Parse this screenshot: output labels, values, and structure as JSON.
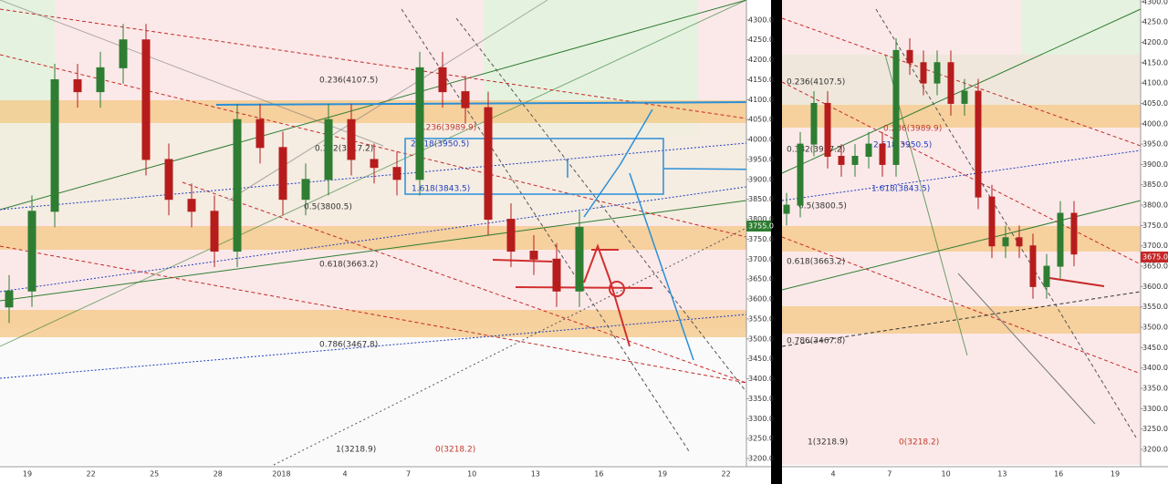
{
  "chart_data": [
    {
      "type": "candlestick",
      "ylim": [
        3184,
        4350
      ],
      "yticks": [
        {
          "value": 4300,
          "label": "4300.0"
        },
        {
          "value": 4250,
          "label": "4250.0"
        },
        {
          "value": 4200,
          "label": "4200.0"
        },
        {
          "value": 4150,
          "label": "4150.0"
        },
        {
          "value": 4100,
          "label": "4100.0"
        },
        {
          "value": 4050,
          "label": "4050.0"
        },
        {
          "value": 4000,
          "label": "4000.0"
        },
        {
          "value": 3950,
          "label": "3950.0"
        },
        {
          "value": 3900,
          "label": "3900.0"
        },
        {
          "value": 3850,
          "label": "3850.0"
        },
        {
          "value": 3800,
          "label": "3800.0"
        },
        {
          "value": 3750,
          "label": "3750.0"
        },
        {
          "value": 3700,
          "label": "3700.0"
        },
        {
          "value": 3650,
          "label": "3650.0"
        },
        {
          "value": 3600,
          "label": "3600.0"
        },
        {
          "value": 3550,
          "label": "3550.0"
        },
        {
          "value": 3500,
          "label": "3500.0"
        },
        {
          "value": 3450,
          "label": "3450.0"
        },
        {
          "value": 3400,
          "label": "3400.0"
        },
        {
          "value": 3350,
          "label": "3350.0"
        },
        {
          "value": 3300,
          "label": "3300.0"
        },
        {
          "value": 3250,
          "label": "3250.0"
        },
        {
          "value": 3200,
          "label": "3200.0"
        }
      ],
      "categories": [
        "19",
        "22",
        "25",
        "28",
        "2018",
        "4",
        "7",
        "10",
        "13",
        "16",
        "19",
        "22"
      ],
      "open": [
        3580,
        3620,
        3820,
        4150,
        4120,
        4180,
        4250,
        3950,
        3850,
        3820,
        3720,
        4050,
        3980,
        3850,
        3900,
        4050,
        3950,
        3930,
        3900,
        4180,
        4120,
        4080,
        3800,
        3720,
        3700,
        3620
      ],
      "high": [
        3660,
        3860,
        4190,
        4190,
        4220,
        4290,
        4290,
        3990,
        3890,
        3860,
        4090,
        4090,
        4020,
        3940,
        4090,
        4090,
        3990,
        3970,
        4220,
        4220,
        4160,
        4120,
        3840,
        3760,
        3740,
        3820
      ],
      "low": [
        3540,
        3580,
        3780,
        4080,
        4080,
        4140,
        3910,
        3810,
        3780,
        3680,
        3680,
        3940,
        3810,
        3810,
        3860,
        3910,
        3890,
        3860,
        3860,
        4080,
        4040,
        3760,
        3680,
        3660,
        3580,
        3580
      ],
      "close": [
        3620,
        3820,
        4150,
        4120,
        4180,
        4250,
        3950,
        3850,
        3820,
        3720,
        4050,
        3980,
        3850,
        3900,
        4050,
        3950,
        3930,
        3900,
        4180,
        4120,
        4080,
        3800,
        3720,
        3700,
        3620,
        3780
      ],
      "up_color": "#2e7d32",
      "down_color": "#b71c1c",
      "last_price": "3755.0",
      "annotations": [
        "0.236(4107.5)",
        "0.236(3989.9)",
        "0.382(3917.2)",
        "2.618(3950.5)",
        "1.618(3843.5)",
        "0.5(3800.5)",
        "0.618(3663.2)",
        "0.786(3467.8)",
        "1(3218.9)",
        "0(3218.2)"
      ]
    },
    {
      "type": "candlestick",
      "ylim": [
        3162,
        4304
      ],
      "yticks": [
        {
          "value": 4300,
          "label": "4300.0"
        },
        {
          "value": 4250,
          "label": "4250.0"
        },
        {
          "value": 4200,
          "label": "4200.0"
        },
        {
          "value": 4150,
          "label": "4150.0"
        },
        {
          "value": 4100,
          "label": "4100.0"
        },
        {
          "value": 4050,
          "label": "4050.0"
        },
        {
          "value": 4000,
          "label": "4000.0"
        },
        {
          "value": 3950,
          "label": "3950.0"
        },
        {
          "value": 3900,
          "label": "3900.0"
        },
        {
          "value": 3850,
          "label": "3850.0"
        },
        {
          "value": 3800,
          "label": "3800.0"
        },
        {
          "value": 3750,
          "label": "3750.0"
        },
        {
          "value": 3700,
          "label": "3700.0"
        },
        {
          "value": 3650,
          "label": "3650.0"
        },
        {
          "value": 3600,
          "label": "3600.0"
        },
        {
          "value": 3550,
          "label": "3550.0"
        },
        {
          "value": 3500,
          "label": "3500.0"
        },
        {
          "value": 3450,
          "label": "3450.0"
        },
        {
          "value": 3400,
          "label": "3400.0"
        },
        {
          "value": 3350,
          "label": "3350.0"
        },
        {
          "value": 3300,
          "label": "3300.0"
        },
        {
          "value": 3250,
          "label": "3250.0"
        },
        {
          "value": 3200,
          "label": "3200.0"
        }
      ],
      "categories": [
        "4",
        "7",
        "10",
        "13",
        "16",
        "19"
      ],
      "open": [
        3780,
        3800,
        3950,
        4050,
        3920,
        3900,
        3920,
        3950,
        3900,
        4180,
        4150,
        4100,
        4150,
        4050,
        4080,
        3820,
        3700,
        3720,
        3700,
        3600,
        3650,
        3780
      ],
      "high": [
        3830,
        3980,
        4080,
        4080,
        3950,
        3950,
        3980,
        3980,
        4210,
        4210,
        4180,
        4180,
        4180,
        4110,
        4110,
        3850,
        3750,
        3750,
        3730,
        3680,
        3810,
        3810
      ],
      "low": [
        3750,
        3770,
        3920,
        3890,
        3870,
        3870,
        3890,
        3870,
        3870,
        4120,
        4070,
        4070,
        4020,
        4020,
        3790,
        3670,
        3670,
        3670,
        3570,
        3570,
        3620,
        3650
      ],
      "close": [
        3800,
        3950,
        4050,
        3920,
        3900,
        3920,
        3950,
        3900,
        4180,
        4150,
        4100,
        4150,
        4050,
        4080,
        3820,
        3700,
        3720,
        3700,
        3600,
        3650,
        3780,
        3680
      ],
      "up_color": "#2e7d32",
      "down_color": "#b71c1c",
      "last_price": "3675.0",
      "annotations": [
        "0.236(4107.5)",
        "0.236(3989.9)",
        "0.382(3917.2)",
        "2.618(3950.5)",
        "1.618(3843.5)",
        "0.5(3800.5)",
        "0.618(3663.2)",
        "0.786(3467.8)",
        "1(3218.9)",
        "0(3218.2)"
      ]
    }
  ]
}
